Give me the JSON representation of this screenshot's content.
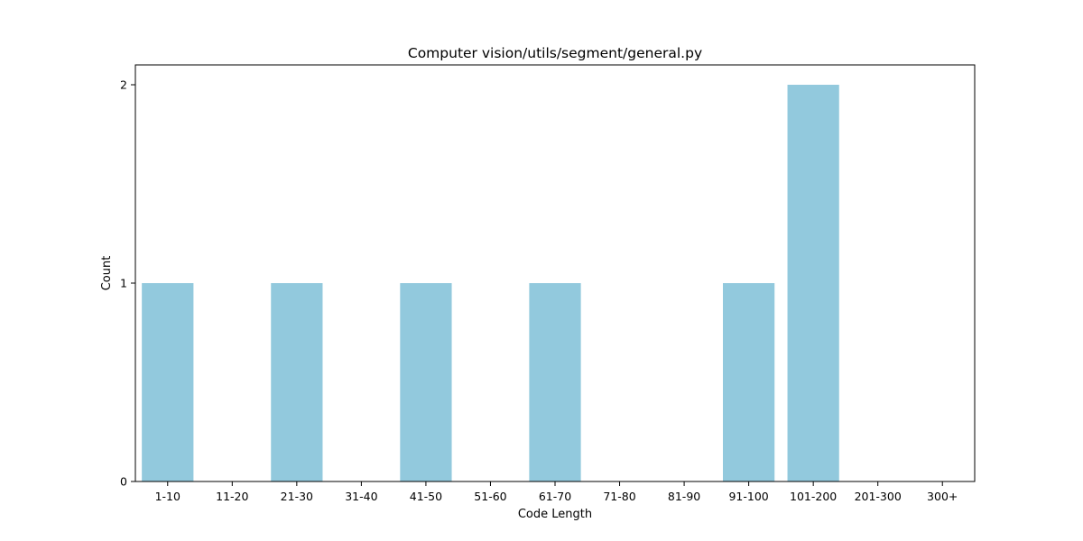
{
  "chart_data": {
    "type": "bar",
    "title": "Computer vision/utils/segment/general.py",
    "xlabel": "Code Length",
    "ylabel": "Count",
    "categories": [
      "1-10",
      "11-20",
      "21-30",
      "31-40",
      "41-50",
      "51-60",
      "61-70",
      "71-80",
      "81-90",
      "91-100",
      "101-200",
      "201-300",
      "300+"
    ],
    "values": [
      1,
      0,
      1,
      0,
      1,
      0,
      1,
      0,
      0,
      1,
      2,
      0,
      0
    ],
    "ylim": [
      0,
      2.1
    ],
    "yticks": [
      "0",
      "1",
      "2"
    ],
    "bar_color": "#92c9dd",
    "grid": false,
    "legend": "none"
  }
}
